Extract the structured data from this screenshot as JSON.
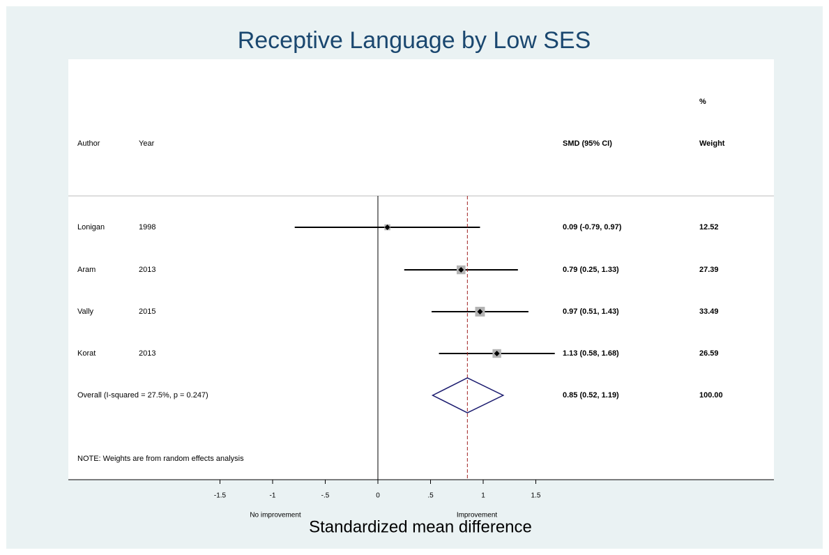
{
  "chart_data": {
    "type": "forest",
    "title": "Receptive Language by Low SES",
    "xlabel": "Standardized mean difference",
    "left_note": "No improvement",
    "right_note": "Improvement",
    "note": "NOTE: Weights are from random effects analysis",
    "headers": {
      "author": "Author",
      "year": "Year",
      "ci": "SMD (95% CI)",
      "weight_top": "%",
      "weight": "Weight"
    },
    "studies": [
      {
        "author": "Lonigan",
        "year": 1998,
        "smd": 0.09,
        "lo": -0.79,
        "hi": 0.97,
        "ci_label": "0.09 (-0.79, 0.97)",
        "weight": 12.52
      },
      {
        "author": "Aram",
        "year": 2013,
        "smd": 0.79,
        "lo": 0.25,
        "hi": 1.33,
        "ci_label": "0.79 (0.25, 1.33)",
        "weight": 27.39
      },
      {
        "author": "Vally",
        "year": 2015,
        "smd": 0.97,
        "lo": 0.51,
        "hi": 1.43,
        "ci_label": "0.97 (0.51, 1.43)",
        "weight": 33.49
      },
      {
        "author": "Korat",
        "year": 2013,
        "smd": 1.13,
        "lo": 0.58,
        "hi": 1.68,
        "ci_label": "1.13 (0.58, 1.68)",
        "weight": 26.59
      }
    ],
    "overall": {
      "label": "Overall  (I-squared = 27.5%, p = 0.247)",
      "smd": 0.85,
      "lo": 0.52,
      "hi": 1.19,
      "ci_label": "0.85 (0.52, 1.19)",
      "weight": {
        "value": 100,
        "label": "100.00"
      }
    },
    "xticks": [
      -1.5,
      -1,
      {
        "value": -0.5,
        "label": "-.5"
      },
      0,
      {
        "value": 0.5,
        "label": ".5"
      },
      1,
      1.5
    ],
    "title_color": "#1a476f",
    "square_color": "#b3b3b3",
    "diamond_color": "#1a1a6e",
    "ref_line_color": "#a02020"
  }
}
